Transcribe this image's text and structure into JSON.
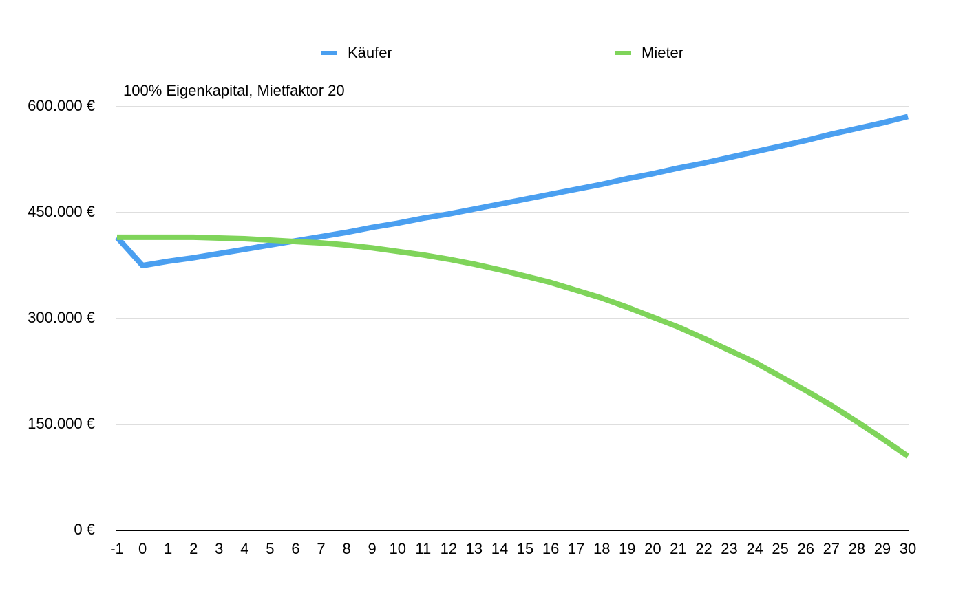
{
  "chart_data": {
    "type": "line",
    "subtitle": "100% Eigenkapital, Mietfaktor 20",
    "x": [
      -1,
      0,
      1,
      2,
      3,
      4,
      5,
      6,
      7,
      8,
      9,
      10,
      11,
      12,
      13,
      14,
      15,
      16,
      17,
      18,
      19,
      20,
      21,
      22,
      23,
      24,
      25,
      26,
      27,
      28,
      29,
      30
    ],
    "xlim": [
      -1,
      30
    ],
    "ylim": [
      0,
      600000
    ],
    "yticks": [
      {
        "value": 0,
        "label": "0 €"
      },
      {
        "value": 150000,
        "label": "150.000 €"
      },
      {
        "value": 300000,
        "label": "300.000 €"
      },
      {
        "value": 450000,
        "label": "450.000 €"
      },
      {
        "value": 600000,
        "label": "600.000 €"
      }
    ],
    "grid": true,
    "legend": "top",
    "series": [
      {
        "name": "Käufer",
        "color": "#4a9ff0",
        "values": [
          415000,
          375000,
          381000,
          386000,
          392000,
          398000,
          404000,
          410000,
          416000,
          422000,
          429000,
          435000,
          442000,
          448000,
          455000,
          462000,
          469000,
          476000,
          483000,
          490000,
          498000,
          505000,
          513000,
          520000,
          528000,
          536000,
          544000,
          552000,
          561000,
          569000,
          577000,
          586000
        ]
      },
      {
        "name": "Mieter",
        "color": "#7fd45a",
        "values": [
          415000,
          415000,
          415000,
          415000,
          414000,
          413000,
          411000,
          409000,
          407000,
          404000,
          400000,
          395000,
          390000,
          384000,
          377000,
          369000,
          360000,
          351000,
          340000,
          329000,
          316000,
          302000,
          288000,
          272000,
          255000,
          238000,
          218000,
          198000,
          177000,
          154000,
          130000,
          105000
        ]
      }
    ]
  }
}
